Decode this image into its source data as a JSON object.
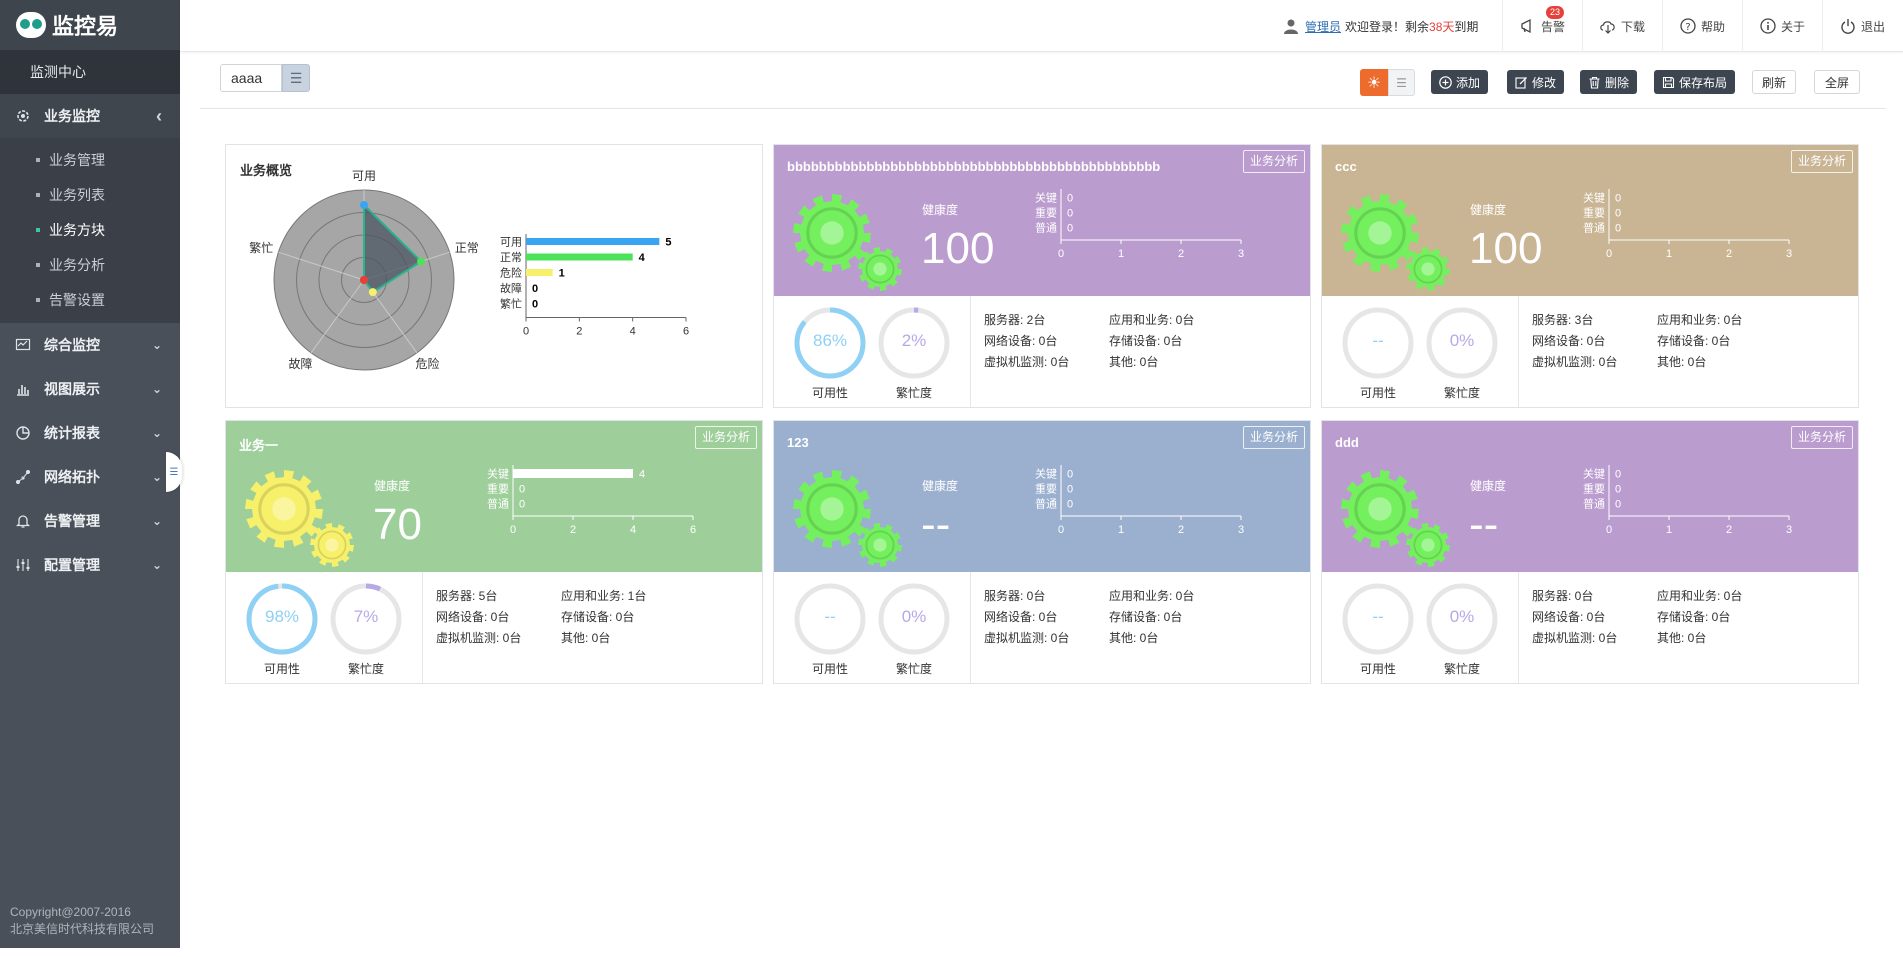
{
  "app": {
    "logo_text": "监控易",
    "monitor_center": "监测中心"
  },
  "sidebar": {
    "groups": [
      {
        "label": "业务监控",
        "icon": "business-monitor-icon",
        "expanded": true,
        "items": [
          {
            "label": "业务管理"
          },
          {
            "label": "业务列表"
          },
          {
            "label": "业务方块",
            "current": true
          },
          {
            "label": "业务分析"
          },
          {
            "label": "告警设置"
          }
        ]
      },
      {
        "label": "综合监控",
        "icon": "integrated-monitor-icon"
      },
      {
        "label": "视图展示",
        "icon": "bar-chart-icon"
      },
      {
        "label": "统计报表",
        "icon": "pie-chart-icon"
      },
      {
        "label": "网络拓扑",
        "icon": "topology-icon"
      },
      {
        "label": "告警管理",
        "icon": "bell-icon"
      },
      {
        "label": "配置管理",
        "icon": "sliders-icon"
      }
    ],
    "copyright_line1": "Copyright@2007-2016",
    "copyright_line2": "北京美信时代科技有限公司"
  },
  "topbar": {
    "user_name": "管理员",
    "welcome_prefix": "欢迎登录！剩余",
    "days": "38天",
    "welcome_suffix": "到期",
    "alarm_label": "告警",
    "alarm_count": "23",
    "download_label": "下载",
    "help_label": "帮助",
    "about_label": "关于",
    "logout_label": "退出"
  },
  "toolbar": {
    "layout_name": "aaaa",
    "add_label": "添加",
    "edit_label": "修改",
    "delete_label": "删除",
    "save_layout_label": "保存布局",
    "refresh_label": "刷新",
    "fullscreen_label": "全屏"
  },
  "overview": {
    "title": "业务概览",
    "radar": {
      "axes": [
        "可用",
        "正常",
        "危险",
        "故障",
        "繁忙"
      ],
      "values": [
        5,
        4,
        1,
        0,
        0
      ],
      "max": 6
    },
    "chart_data": {
      "type": "bar",
      "categories": [
        "可用",
        "正常",
        "危险",
        "故障",
        "繁忙"
      ],
      "values": [
        5,
        4,
        1,
        0,
        0
      ],
      "colors": [
        "#3aa3f2",
        "#4ce35a",
        "#f7f06a",
        "#e0e0e0",
        "#e0e0e0"
      ],
      "xlim": [
        0,
        6
      ],
      "xticks": [
        0,
        2,
        4,
        6
      ]
    }
  },
  "labels": {
    "health": "健康度",
    "analyze": "业务分析",
    "availability": "可用性",
    "busy": "繁忙度",
    "alarm_levels": [
      "关键",
      "重要",
      "普通"
    ]
  },
  "businesses": [
    {
      "name": "bbbbbbbbbbbbbbbbbbbbbbbbbbbbbbbbbbbbbbbbbbbbbbb",
      "color": "#bb9ccf",
      "gear_color": "#74f05e",
      "health": "100",
      "chart_data": {
        "type": "bar",
        "categories": [
          "关键",
          "重要",
          "普通"
        ],
        "values": [
          0,
          0,
          0
        ],
        "xlim": [
          0,
          3
        ],
        "xticks": [
          0,
          1,
          2,
          3
        ]
      },
      "availability": {
        "text": "86%",
        "value": 86
      },
      "busy": {
        "text": "2%",
        "value": 2
      },
      "stats": [
        "服务器: 2台",
        "应用和业务: 0台",
        "网络设备: 0台",
        "存储设备: 0台",
        "虚拟机监测: 0台",
        "其他: 0台"
      ]
    },
    {
      "name": "ccc",
      "color": "#c9b594",
      "gear_color": "#74f05e",
      "health": "100",
      "chart_data": {
        "type": "bar",
        "categories": [
          "关键",
          "重要",
          "普通"
        ],
        "values": [
          0,
          0,
          0
        ],
        "xlim": [
          0,
          3
        ],
        "xticks": [
          0,
          1,
          2,
          3
        ]
      },
      "availability": {
        "text": "--",
        "value": 0
      },
      "busy": {
        "text": "0%",
        "value": 0
      },
      "stats": [
        "服务器: 3台",
        "应用和业务: 0台",
        "网络设备: 0台",
        "存储设备: 0台",
        "虚拟机监测: 0台",
        "其他: 0台"
      ]
    },
    {
      "name": "业务一",
      "color": "#9ecf9a",
      "gear_color": "#f7f06a",
      "health": "70",
      "chart_data": {
        "type": "bar",
        "categories": [
          "关键",
          "重要",
          "普通"
        ],
        "values": [
          4,
          0,
          0
        ],
        "xlim": [
          0,
          6
        ],
        "xticks": [
          0,
          2,
          4,
          6
        ]
      },
      "availability": {
        "text": "98%",
        "value": 98
      },
      "busy": {
        "text": "7%",
        "value": 7
      },
      "stats": [
        "服务器: 5台",
        "应用和业务: 1台",
        "网络设备: 0台",
        "存储设备: 0台",
        "虚拟机监测: 0台",
        "其他: 0台"
      ]
    },
    {
      "name": "123",
      "color": "#9bafcf",
      "gear_color": "#74f05e",
      "health": "--",
      "chart_data": {
        "type": "bar",
        "categories": [
          "关键",
          "重要",
          "普通"
        ],
        "values": [
          0,
          0,
          0
        ],
        "xlim": [
          0,
          3
        ],
        "xticks": [
          0,
          1,
          2,
          3
        ]
      },
      "availability": {
        "text": "--",
        "value": 0
      },
      "busy": {
        "text": "0%",
        "value": 0
      },
      "stats": [
        "服务器: 0台",
        "应用和业务: 0台",
        "网络设备: 0台",
        "存储设备: 0台",
        "虚拟机监测: 0台",
        "其他: 0台"
      ]
    },
    {
      "name": "ddd",
      "color": "#bb9ccf",
      "gear_color": "#74f05e",
      "health": "--",
      "chart_data": {
        "type": "bar",
        "categories": [
          "关键",
          "重要",
          "普通"
        ],
        "values": [
          0,
          0,
          0
        ],
        "xlim": [
          0,
          3
        ],
        "xticks": [
          0,
          1,
          2,
          3
        ]
      },
      "availability": {
        "text": "--",
        "value": 0
      },
      "busy": {
        "text": "0%",
        "value": 0
      },
      "stats": [
        "服务器: 0台",
        "应用和业务: 0台",
        "网络设备: 0台",
        "存储设备: 0台",
        "虚拟机监测: 0台",
        "其他: 0台"
      ]
    }
  ]
}
